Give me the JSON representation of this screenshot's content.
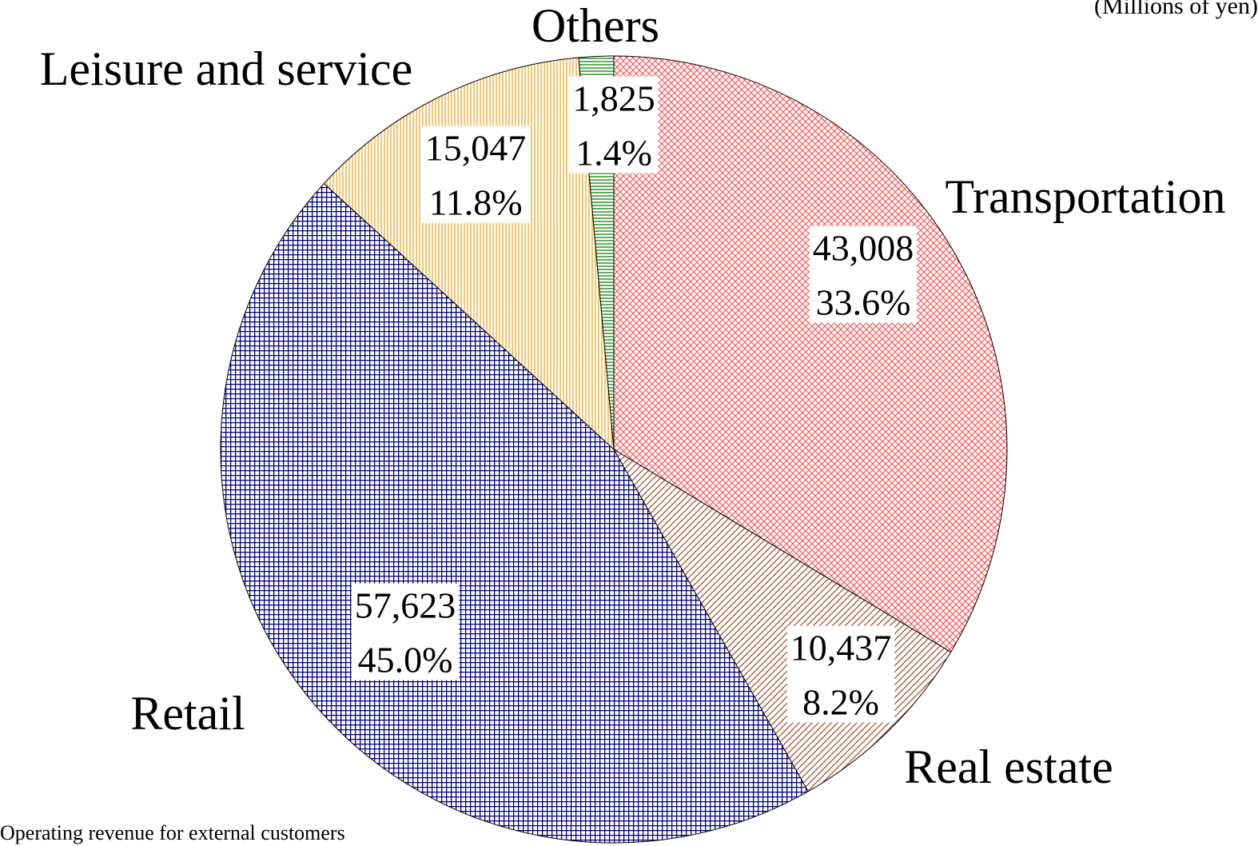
{
  "chart_data": {
    "type": "pie",
    "unit_note": "(Millions of yen)",
    "footnote": "Operating revenue for external customers",
    "categories": [
      "Transportation",
      "Real estate",
      "Retail",
      "Leisure and service",
      "Others"
    ],
    "values": [
      43008,
      10437,
      57623,
      15047,
      1825
    ],
    "value_labels": [
      "43,008",
      "10,437",
      "57,623",
      "15,047",
      "1,825"
    ],
    "percents": [
      33.6,
      8.2,
      45.0,
      11.8,
      1.4
    ],
    "percent_labels": [
      "33.6%",
      "8.2%",
      "45.0%",
      "11.8%",
      "1.4%"
    ],
    "colors": [
      "#ff5a5a",
      "#a0522d",
      "#000080",
      "#f5a623",
      "#008000"
    ]
  }
}
